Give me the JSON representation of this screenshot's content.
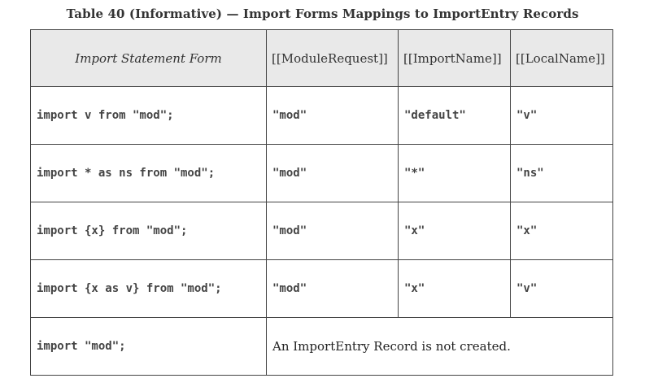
{
  "caption": "Table 40 (Informative) — Import Forms Mappings to ImportEntry Records",
  "headers": {
    "form": "Import Statement Form",
    "module_request": "[[ModuleRequest]]",
    "import_name": "[[ImportName]]",
    "local_name": "[[LocalName]]"
  },
  "rows": [
    {
      "form": "import v from \"mod\";",
      "module_request": "\"mod\"",
      "import_name": "\"default\"",
      "local_name": "\"v\""
    },
    {
      "form": "import * as ns from \"mod\";",
      "module_request": "\"mod\"",
      "import_name": "\"*\"",
      "local_name": "\"ns\""
    },
    {
      "form": "import {x} from \"mod\";",
      "module_request": "\"mod\"",
      "import_name": "\"x\"",
      "local_name": "\"x\""
    },
    {
      "form": "import {x as v} from \"mod\";",
      "module_request": "\"mod\"",
      "import_name": "\"x\"",
      "local_name": "\"v\""
    }
  ],
  "last_row": {
    "form": "import \"mod\";",
    "note": "An ImportEntry Record is not created."
  }
}
